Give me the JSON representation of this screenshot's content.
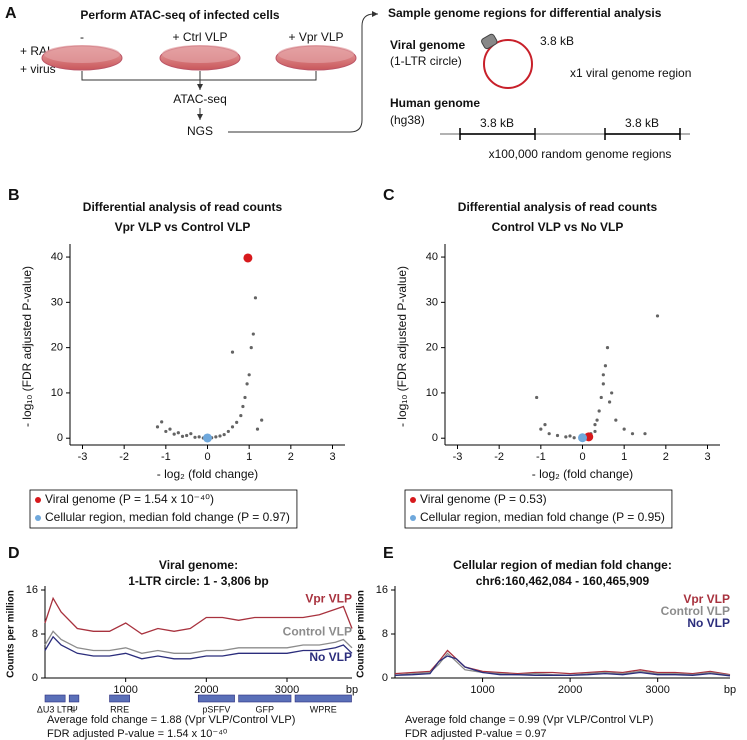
{
  "panel_a": {
    "label": "A",
    "title": "Perform ATAC-seq of infected cells",
    "conditions": [
      "+ RAL",
      "+ virus"
    ],
    "dishes": [
      "-",
      "+ Ctrl VLP",
      "+ Vpr VLP"
    ],
    "steps": [
      "ATAC-seq",
      "NGS"
    ],
    "sample_title": "Sample genome regions for differential analysis",
    "viral_label": "Viral genome",
    "viral_sub": "(1-LTR circle)",
    "viral_size": "3.8 kB",
    "viral_count": "x1 viral genome region",
    "human_label": "Human genome",
    "human_sub": "(hg38)",
    "human_sizes": [
      "3.8 kB",
      "3.8 kB"
    ],
    "human_count": "x100,000 random genome regions"
  },
  "chart_data": [
    {
      "type": "scatter",
      "panel": "B",
      "title": "Differential analysis of read counts",
      "subtitle": "Vpr VLP vs Control VLP",
      "xlabel": "- log₂ (fold change)",
      "ylabel": "- log₁₀ (FDR adjusted P-value)",
      "xlim": [
        -3.3,
        3.3
      ],
      "xticks": [
        -3,
        -2,
        -1,
        0,
        1,
        2,
        3
      ],
      "ylim": [
        -1.5,
        42
      ],
      "yticks": [
        0,
        10,
        20,
        30,
        40
      ],
      "legend": "bottom",
      "series": [
        {
          "color": "#222222",
          "x": [
            -1.2,
            -1.1,
            -0.9,
            -0.7,
            -0.5,
            -0.3,
            -0.1,
            0.1,
            0.3,
            0.5,
            0.6,
            0.7,
            0.8,
            0.85,
            0.9,
            0.95,
            1.0,
            1.05,
            1.1,
            1.15,
            0.6,
            -0.4,
            -1.0,
            1.2,
            1.3,
            0.4,
            -0.6,
            -0.2,
            0.2,
            -0.8
          ],
          "values": [
            2.5,
            3.6,
            2,
            1.2,
            0.6,
            0.2,
            0.05,
            0.1,
            0.5,
            1.5,
            2.5,
            3.5,
            5,
            7,
            9,
            12,
            14,
            20,
            23,
            31,
            19,
            1,
            1.5,
            2,
            4,
            0.8,
            0.4,
            0.3,
            0.3,
            0.9
          ]
        },
        {
          "name": "Viral genome (P = 1.54 x 10⁻⁴⁰)",
          "color": "#d7191c",
          "x": [
            0.97
          ],
          "values": [
            39.8
          ]
        },
        {
          "name": "Cellular region, median fold change (P = 0.97)",
          "color": "#6fa8dc",
          "x": [
            0
          ],
          "values": [
            0.05
          ]
        }
      ]
    },
    {
      "type": "scatter",
      "panel": "C",
      "title": "Differential analysis of read counts",
      "subtitle": "Control VLP vs No VLP",
      "xlabel": "- log₂ (fold change)",
      "ylabel": "- log₁₀ (FDR adjusted P-value)",
      "xlim": [
        -3.3,
        3.3
      ],
      "xticks": [
        -3,
        -2,
        -1,
        0,
        1,
        2,
        3
      ],
      "ylim": [
        -1.5,
        42
      ],
      "yticks": [
        0,
        10,
        20,
        30,
        40
      ],
      "legend": "bottom",
      "series": [
        {
          "color": "#222222",
          "x": [
            -1,
            -0.8,
            -0.6,
            -0.4,
            -0.2,
            0.05,
            0.2,
            0.3,
            0.4,
            0.45,
            0.5,
            0.55,
            0.6,
            0.5,
            0.65,
            0.8,
            1.0,
            1.2,
            0.35,
            -1.1,
            -0.9,
            1.5,
            1.8,
            0.7,
            0.3,
            -0.3
          ],
          "values": [
            2,
            1,
            0.6,
            0.3,
            0.1,
            0.05,
            1,
            3,
            6,
            9,
            12,
            16,
            20,
            14,
            8,
            4,
            2,
            1,
            4,
            9,
            3,
            1,
            27,
            10,
            1.5,
            0.5
          ]
        },
        {
          "name": "Viral genome (P = 0.53)",
          "color": "#d7191c",
          "x": [
            0.15
          ],
          "values": [
            0.3
          ]
        },
        {
          "name": "Cellular region, median fold change (P = 0.95)",
          "color": "#6fa8dc",
          "x": [
            0
          ],
          "values": [
            0.1
          ]
        }
      ]
    },
    {
      "type": "line",
      "panel": "D",
      "title": "Viral genome:",
      "subtitle": "1-LTR circle: 1 - 3,806 bp",
      "ylabel": "Counts per million",
      "xunit": "bp",
      "xlim": [
        0,
        3806
      ],
      "xticks": [
        1000,
        2000,
        3000
      ],
      "ylim": [
        0,
        16
      ],
      "yticks": [
        0,
        8,
        16
      ],
      "legend": "inline",
      "x": [
        0,
        100,
        200,
        400,
        600,
        800,
        1000,
        1200,
        1400,
        1600,
        1800,
        2000,
        2200,
        2400,
        2600,
        2800,
        3000,
        3200,
        3400,
        3600,
        3700,
        3806
      ],
      "series": [
        {
          "name": "Vpr VLP",
          "color": "#a8323e",
          "values": [
            10,
            14.5,
            12,
            9,
            8.5,
            8.5,
            10,
            8,
            9,
            8.5,
            9,
            11,
            11,
            10.5,
            11,
            11,
            11,
            11,
            11.5,
            12.5,
            13,
            9
          ]
        },
        {
          "name": "Control VLP",
          "color": "#8c8c8c",
          "values": [
            6,
            8.5,
            7,
            5.5,
            5,
            5,
            5.5,
            4.5,
            5,
            4.5,
            4.5,
            5,
            5,
            5.5,
            5.5,
            5.5,
            5.5,
            6,
            6,
            6.5,
            7,
            5.5
          ]
        },
        {
          "name": "No VLP",
          "color": "#2b2d7c",
          "values": [
            5,
            7.5,
            6,
            4.5,
            4,
            4,
            4.5,
            3.5,
            4,
            3.5,
            3.5,
            4,
            4,
            4.5,
            4.5,
            4.5,
            4.5,
            5,
            5,
            5.5,
            6,
            4.5
          ]
        }
      ],
      "features": [
        {
          "label": "ΔU3 LTR",
          "start": 0,
          "end": 250
        },
        {
          "label": "Ψ",
          "start": 300,
          "end": 420
        },
        {
          "label": "RRE",
          "start": 800,
          "end": 1050
        },
        {
          "label": "pSFFV",
          "start": 1900,
          "end": 2350
        },
        {
          "label": "GFP",
          "start": 2400,
          "end": 3050
        },
        {
          "label": "WPRE",
          "start": 3100,
          "end": 3800
        }
      ],
      "notes": [
        "Average fold change = 1.88 (Vpr VLP/Control VLP)",
        "FDR adjusted P-value = 1.54 x 10⁻⁴⁰"
      ]
    },
    {
      "type": "line",
      "panel": "E",
      "title": "Cellular region of median fold change:",
      "subtitle": "chr6:160,462,084 - 160,465,909",
      "ylabel": "Counts per million",
      "xunit": "bp",
      "xlim": [
        0,
        3826
      ],
      "xticks": [
        1000,
        2000,
        3000
      ],
      "ylim": [
        0,
        16
      ],
      "yticks": [
        0,
        8,
        16
      ],
      "legend": "top-right",
      "x": [
        0,
        200,
        400,
        500,
        600,
        700,
        800,
        1000,
        1200,
        1400,
        1600,
        1800,
        2000,
        2200,
        2400,
        2600,
        2800,
        3000,
        3200,
        3400,
        3600,
        3826
      ],
      "series": [
        {
          "name": "Vpr VLP",
          "color": "#a8323e",
          "values": [
            0.8,
            1,
            1.2,
            3,
            5,
            3.5,
            2,
            1.2,
            1,
            0.8,
            1,
            1,
            0.8,
            1,
            1.2,
            1,
            1.5,
            1,
            1,
            0.8,
            1.2,
            0.6
          ]
        },
        {
          "name": "Control VLP",
          "color": "#8c8c8c",
          "values": [
            0.5,
            0.8,
            1,
            2.5,
            4.5,
            3,
            1.5,
            1,
            0.8,
            0.6,
            0.8,
            0.6,
            0.5,
            0.8,
            1,
            0.8,
            1.2,
            0.8,
            0.8,
            0.6,
            1,
            0.5
          ]
        },
        {
          "name": "No VLP",
          "color": "#2b2d7c",
          "values": [
            0.5,
            0.6,
            0.8,
            3,
            4,
            3.5,
            2,
            1,
            0.6,
            0.6,
            0.5,
            0.5,
            0.5,
            0.6,
            0.8,
            0.6,
            1,
            0.6,
            0.6,
            0.5,
            0.8,
            0.4
          ]
        }
      ],
      "notes": [
        "Average fold change = 0.99 (Vpr VLP/Control VLP)",
        "FDR adjusted P-value = 0.97"
      ]
    }
  ]
}
